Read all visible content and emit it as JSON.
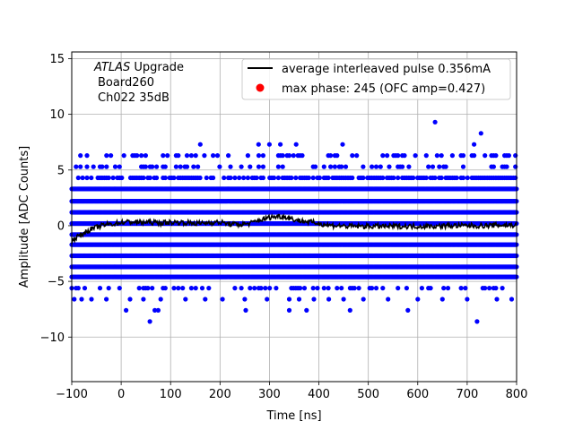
{
  "chart_data": {
    "type": "scatter",
    "xlabel": "Time [ns]",
    "ylabel": "Amplitude [ADC Counts]",
    "xlim": [
      -100,
      800
    ],
    "ylim": [
      -14,
      15.6
    ],
    "xticks": [
      -100,
      0,
      100,
      200,
      300,
      400,
      500,
      600,
      700,
      800
    ],
    "yticks": [
      -10,
      -5,
      0,
      5,
      10,
      15
    ],
    "grid": true,
    "legend_position": "top-right",
    "annotation": {
      "line1_italic": "ATLAS",
      "line1_rest": " Upgrade",
      "line2": "Board260",
      "line3": "Ch022 35dB"
    },
    "series": [
      {
        "name": "average interleaved pulse 0.356mA",
        "type": "line",
        "color": "#000000",
        "x": [
          -100,
          -90,
          -80,
          -70,
          -60,
          -50,
          -40,
          -30,
          -20,
          -10,
          0,
          20,
          40,
          60,
          80,
          100,
          120,
          140,
          160,
          180,
          200,
          220,
          240,
          260,
          280,
          290,
          300,
          310,
          320,
          330,
          340,
          350,
          360,
          380,
          400,
          420,
          440,
          460,
          480,
          500,
          520,
          540,
          560,
          580,
          600,
          620,
          640,
          660,
          680,
          700,
          720,
          740,
          760,
          780,
          800
        ],
        "y": [
          -1.4,
          -1.0,
          -0.8,
          -0.5,
          -0.3,
          -0.15,
          0.0,
          0.1,
          0.15,
          0.2,
          0.3,
          0.35,
          0.3,
          0.3,
          0.25,
          0.3,
          0.3,
          0.25,
          0.2,
          0.3,
          0.3,
          0.15,
          0.1,
          0.2,
          0.5,
          0.6,
          0.75,
          0.8,
          0.85,
          0.8,
          0.7,
          0.55,
          0.45,
          0.35,
          0.2,
          0.05,
          0.0,
          -0.05,
          -0.05,
          -0.05,
          -0.05,
          -0.05,
          -0.05,
          -0.05,
          -0.05,
          -0.05,
          -0.05,
          0.0,
          0.0,
          0.0,
          0.0,
          0.0,
          0.05,
          0.05,
          0.05
        ]
      },
      {
        "name": "max phase: 245 (OFC amp=0.427)",
        "type": "scatter",
        "color": "#ff0000",
        "x": [],
        "y": []
      },
      {
        "name": "",
        "type": "scatter",
        "color": "#0000ff",
        "levels": [
          -5.6,
          -4.6,
          -3.7,
          -2.7,
          -1.7,
          -0.8,
          0.2,
          1.2,
          2.2,
          3.3,
          4.3,
          5.3,
          6.3
        ],
        "dense_levels": [
          -4.6,
          -3.7,
          -2.7,
          -1.7,
          -0.8,
          0.2,
          1.2,
          2.2,
          3.3
        ],
        "outliers": [
          {
            "x": 58,
            "y": -8.6
          },
          {
            "x": 720,
            "y": -8.6
          },
          {
            "x": 635,
            "y": 9.3
          },
          {
            "x": 728,
            "y": 8.3
          },
          {
            "x": 160,
            "y": 7.3
          },
          {
            "x": 278,
            "y": 7.3
          },
          {
            "x": 300,
            "y": 7.3
          },
          {
            "x": 322,
            "y": 7.3
          },
          {
            "x": 354,
            "y": 7.3
          },
          {
            "x": 448,
            "y": 7.3
          },
          {
            "x": 714,
            "y": 7.3
          },
          {
            "x": 75,
            "y": -7.6
          },
          {
            "x": 10,
            "y": -7.6
          },
          {
            "x": 252,
            "y": -7.6
          },
          {
            "x": 375,
            "y": -7.6
          },
          {
            "x": 463,
            "y": -7.6
          },
          {
            "x": 68,
            "y": -7.6
          },
          {
            "x": 340,
            "y": -7.6
          },
          {
            "x": 580,
            "y": -7.6
          },
          {
            "x": -95,
            "y": -6.6
          },
          {
            "x": -80,
            "y": -6.6
          },
          {
            "x": -60,
            "y": -6.6
          },
          {
            "x": -30,
            "y": -6.6
          },
          {
            "x": 18,
            "y": -6.6
          },
          {
            "x": 45,
            "y": -6.6
          },
          {
            "x": 80,
            "y": -6.6
          },
          {
            "x": 130,
            "y": -6.6
          },
          {
            "x": 170,
            "y": -6.6
          },
          {
            "x": 205,
            "y": -6.6
          },
          {
            "x": 250,
            "y": -6.6
          },
          {
            "x": 295,
            "y": -6.6
          },
          {
            "x": 340,
            "y": -6.6
          },
          {
            "x": 360,
            "y": -6.6
          },
          {
            "x": 390,
            "y": -6.6
          },
          {
            "x": 420,
            "y": -6.6
          },
          {
            "x": 450,
            "y": -6.6
          },
          {
            "x": 490,
            "y": -6.6
          },
          {
            "x": 540,
            "y": -6.6
          },
          {
            "x": 600,
            "y": -6.6
          },
          {
            "x": 650,
            "y": -6.6
          },
          {
            "x": 700,
            "y": -6.6
          },
          {
            "x": 760,
            "y": -6.6
          },
          {
            "x": 790,
            "y": -6.6
          }
        ]
      }
    ]
  }
}
